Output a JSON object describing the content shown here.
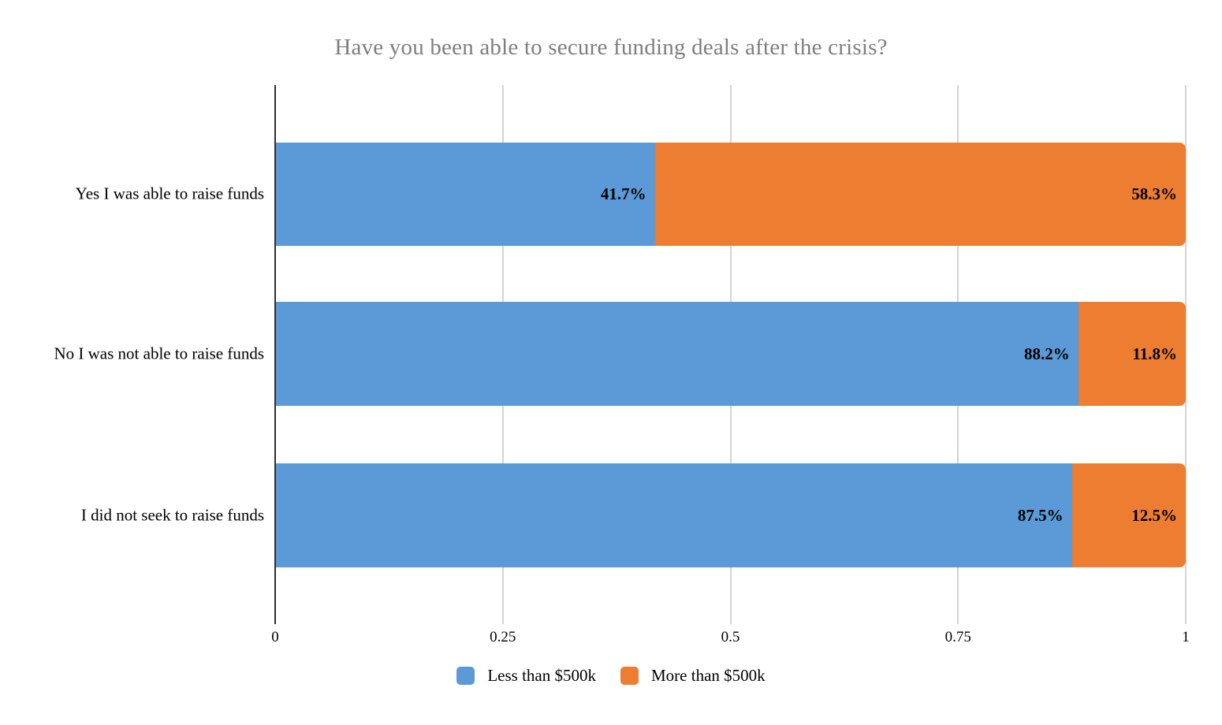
{
  "title": "Have you been able to secure funding deals after the crisis?",
  "colors": {
    "blue": "#5B9AD6",
    "orange": "#ED7D31",
    "gridline": "#D4D4D4",
    "axis_line": "#2E2E2E",
    "title_text": "#7E7E7E",
    "label_text": "#000000"
  },
  "chart_data": {
    "type": "bar",
    "orientation": "horizontal",
    "stacked": true,
    "grid": true,
    "title": "Have you been able to secure funding deals after the crisis?",
    "categories": [
      "Yes I was able to raise funds",
      "No I was not able to raise funds",
      "I did not seek to raise funds"
    ],
    "series": [
      {
        "name": "Less than $500k",
        "color": "#5B9AD6",
        "values": [
          0.417,
          0.882,
          0.875
        ]
      },
      {
        "name": "More than $500k",
        "color": "#ED7D31",
        "values": [
          0.583,
          0.118,
          0.125
        ]
      }
    ],
    "rows": [
      {
        "category": "Yes I was able to raise funds",
        "segments": [
          {
            "label": "41.7%",
            "pct": 41.7
          },
          {
            "label": "58.3%",
            "pct": 58.3
          }
        ]
      },
      {
        "category": "No I was not able to raise funds",
        "segments": [
          {
            "label": "88.2%",
            "pct": 88.2
          },
          {
            "label": "11.8%",
            "pct": 11.8
          }
        ]
      },
      {
        "category": "I did not seek to raise funds",
        "segments": [
          {
            "label": "87.5%",
            "pct": 87.5
          },
          {
            "label": "12.5%",
            "pct": 12.5
          }
        ]
      }
    ],
    "x_axis": {
      "lim": [
        0,
        1
      ],
      "ticks": [
        {
          "label": "0",
          "f": 0
        },
        {
          "label": "0.25",
          "f": 0.25
        },
        {
          "label": "0.5",
          "f": 0.5
        },
        {
          "label": "0.75",
          "f": 0.75
        },
        {
          "label": "1",
          "f": 1
        }
      ]
    },
    "legend": {
      "position": "bottom",
      "items": [
        {
          "label": "Less than $500k",
          "color": "#5B9AD6"
        },
        {
          "label": "More than $500k",
          "color": "#ED7D31"
        }
      ]
    }
  }
}
